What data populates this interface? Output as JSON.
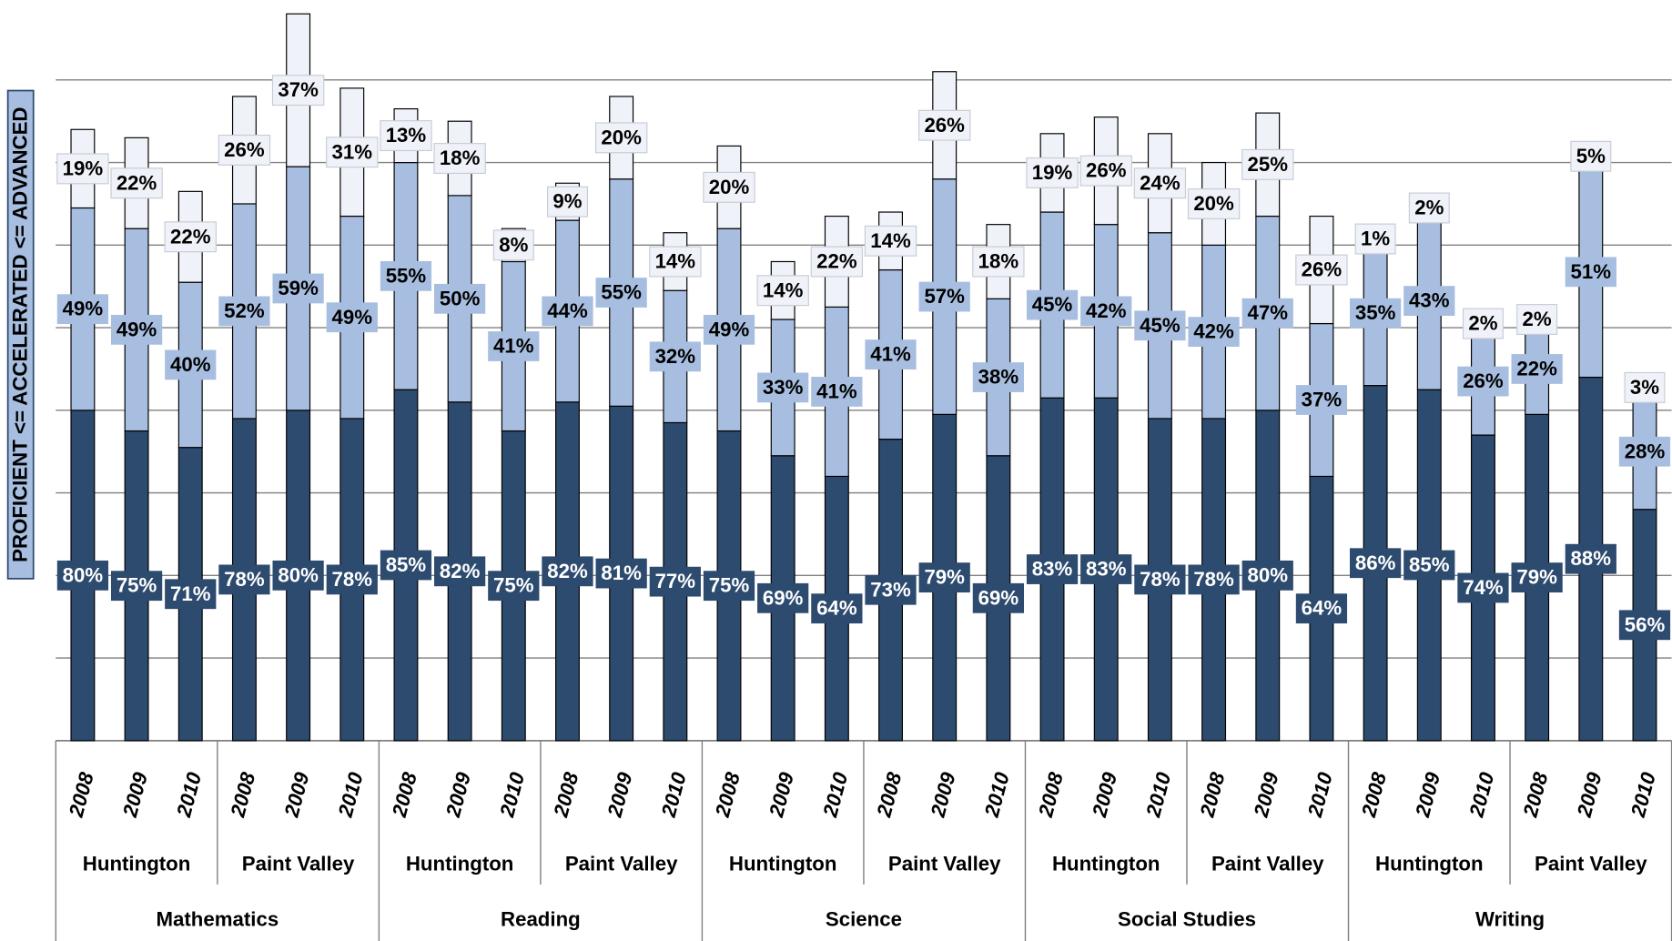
{
  "chart_data": {
    "type": "bar",
    "stacked": true,
    "y_label": "PROFICIENT <= ACCELERATED <= ADVANCED",
    "categories": [
      "2008",
      "2009",
      "2010",
      "2008",
      "2009",
      "2010",
      "2008",
      "2009",
      "2010",
      "2008",
      "2009",
      "2010",
      "2008",
      "2009",
      "2010",
      "2008",
      "2009",
      "2010",
      "2008",
      "2009",
      "2010",
      "2008",
      "2009",
      "2010",
      "2008",
      "2009",
      "2010",
      "2008",
      "2009",
      "2010"
    ],
    "school_groups": [
      "Huntington",
      "Paint Valley",
      "Huntington",
      "Paint Valley",
      "Huntington",
      "Paint Valley",
      "Huntington",
      "Paint Valley",
      "Huntington",
      "Paint Valley"
    ],
    "subject_groups": [
      "Mathematics",
      "Reading",
      "Science",
      "Social Studies",
      "Writing"
    ],
    "series": [
      {
        "color": "#2d4a6f",
        "label_color": "#ffffff",
        "values": [
          80,
          75,
          71,
          78,
          80,
          78,
          85,
          82,
          75,
          82,
          81,
          77,
          75,
          69,
          64,
          73,
          79,
          69,
          83,
          83,
          78,
          78,
          80,
          64,
          86,
          85,
          74,
          79,
          88,
          56
        ],
        "value_labels": [
          "80%",
          "75%",
          "71%",
          "78%",
          "80%",
          "78%",
          "85%",
          "82%",
          "75%",
          "82%",
          "81%",
          "77%",
          "75%",
          "69%",
          "64%",
          "73%",
          "79%",
          "69%",
          "83%",
          "83%",
          "78%",
          "78%",
          "80%",
          "64%",
          "86%",
          "85%",
          "74%",
          "79%",
          "88%",
          "56%"
        ]
      },
      {
        "color": "#a7bee0",
        "label_color": "#000000",
        "values": [
          49,
          49,
          40,
          52,
          59,
          49,
          55,
          50,
          41,
          44,
          55,
          32,
          49,
          33,
          41,
          41,
          57,
          38,
          45,
          42,
          45,
          42,
          47,
          37,
          35,
          43,
          26,
          22,
          51,
          28
        ],
        "value_labels": [
          "49%",
          "49%",
          "40%",
          "52%",
          "59%",
          "49%",
          "55%",
          "50%",
          "41%",
          "44%",
          "55%",
          "32%",
          "49%",
          "33%",
          "41%",
          "41%",
          "57%",
          "38%",
          "45%",
          "42%",
          "45%",
          "42%",
          "47%",
          "37%",
          "35%",
          "43%",
          "26%",
          "22%",
          "51%",
          "28%"
        ]
      },
      {
        "color": "#eff2f8",
        "label_color": "#000000",
        "values": [
          19,
          22,
          22,
          26,
          37,
          31,
          13,
          18,
          8,
          9,
          20,
          14,
          20,
          14,
          22,
          14,
          26,
          18,
          19,
          26,
          24,
          20,
          25,
          26,
          1,
          2,
          2,
          2,
          5,
          3
        ],
        "value_labels": [
          "19%",
          "22%",
          "22%",
          "26%",
          "37%",
          "31%",
          "13%",
          "18%",
          "8%",
          "9%",
          "20%",
          "14%",
          "20%",
          "14%",
          "22%",
          "14%",
          "26%",
          "18%",
          "19%",
          "26%",
          "24%",
          "20%",
          "25%",
          "26%",
          "1%",
          "2%",
          "2%",
          "2%",
          "5%",
          "3%"
        ]
      }
    ],
    "ylim": [
      0,
      180
    ],
    "yticks": [
      0,
      20,
      40,
      60,
      80,
      100,
      120,
      140,
      160
    ],
    "grid": true,
    "tick_labels": false
  }
}
